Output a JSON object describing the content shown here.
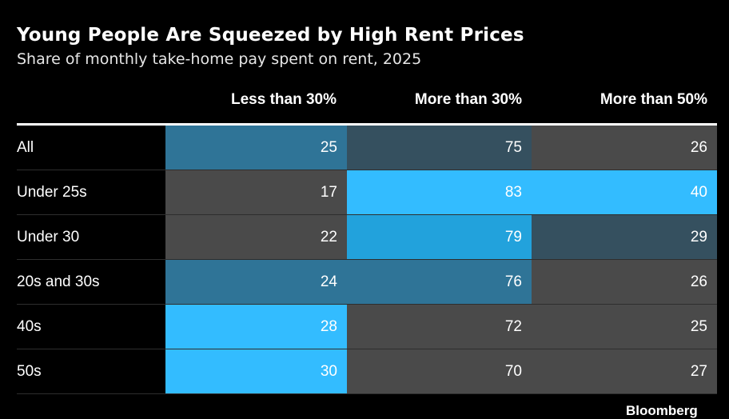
{
  "chart_data": {
    "type": "table",
    "title": "Young People Are Squeezed by High Rent Prices",
    "subtitle": "Share of monthly take-home pay spent on rent, 2025",
    "columns": [
      "Less than 30%",
      "More than 30%",
      "More than 50%"
    ],
    "rows": [
      {
        "label": "All",
        "values": [
          25,
          75,
          26
        ]
      },
      {
        "label": "Under 25s",
        "values": [
          17,
          83,
          40
        ]
      },
      {
        "label": "Under 30",
        "values": [
          22,
          79,
          29
        ]
      },
      {
        "label": "20s and 30s",
        "values": [
          24,
          76,
          26
        ]
      },
      {
        "label": "40s",
        "values": [
          28,
          72,
          25
        ]
      },
      {
        "label": "50s",
        "values": [
          30,
          70,
          27
        ]
      }
    ],
    "cell_colors": [
      [
        "#2f7497",
        "#35505f",
        "#4a4a4a"
      ],
      [
        "#4a4a4a",
        "#33bcff",
        "#33bcff"
      ],
      [
        "#4a4a4a",
        "#22a2dc",
        "#35505f"
      ],
      [
        "#2f7497",
        "#2f7497",
        "#4a4a4a"
      ],
      [
        "#33bcff",
        "#4a4a4a",
        "#4a4a4a"
      ],
      [
        "#33bcff",
        "#4a4a4a",
        "#4a4a4a"
      ]
    ]
  },
  "footer": {
    "logo": "Bloomberg"
  }
}
